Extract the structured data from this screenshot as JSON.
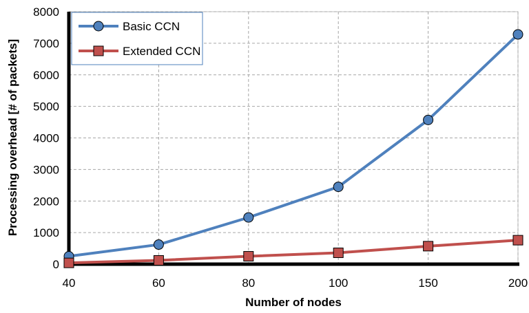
{
  "chart_data": {
    "type": "line",
    "categories": [
      "40",
      "60",
      "80",
      "100",
      "150",
      "200"
    ],
    "xlabel": "Number of nodes",
    "ylabel": "Processing overhead [# of packets]",
    "ylim": [
      0,
      8000
    ],
    "yticks": [
      0,
      1000,
      2000,
      3000,
      4000,
      5000,
      6000,
      7000,
      8000
    ],
    "grid": true,
    "legend_position": "top-left",
    "series": [
      {
        "name": "Basic CCN",
        "values": [
          250,
          620,
          1480,
          2450,
          4570,
          7280
        ],
        "color": "#4f81bd",
        "marker": "circle"
      },
      {
        "name": "Extended CCN",
        "values": [
          40,
          120,
          250,
          360,
          570,
          760
        ],
        "color": "#c0504d",
        "marker": "square"
      }
    ]
  }
}
